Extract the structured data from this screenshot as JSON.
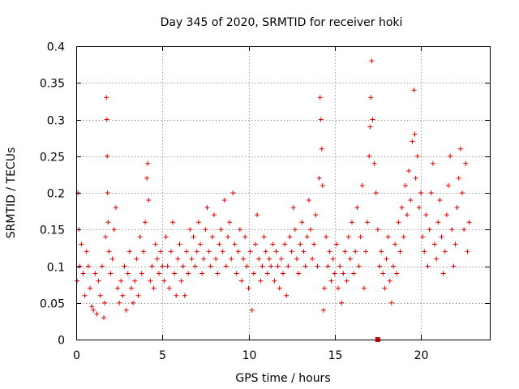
{
  "chart_data": {
    "type": "scatter",
    "title": "Day 345 of 2020, SRMTID for receiver hoki",
    "xlabel": "GPS time / hours",
    "ylabel": "SRMTID / TECUs",
    "xlim": [
      0,
      24
    ],
    "ylim": [
      0,
      0.4
    ],
    "xticks": [
      "0",
      "5",
      "10",
      "15",
      "20"
    ],
    "xtick_values": [
      0,
      5,
      10,
      15,
      20
    ],
    "yticks": [
      "0",
      "0.05",
      "0.1",
      "0.15",
      "0.2",
      "0.25",
      "0.3",
      "0.35",
      "0.4"
    ],
    "ytick_values": [
      0,
      0.05,
      0.1,
      0.15,
      0.2,
      0.25,
      0.3,
      0.35,
      0.4
    ],
    "grid": true,
    "marker": "plus",
    "color": "#e00000",
    "series": [
      {
        "name": "SRMTID",
        "points": [
          [
            0.05,
            0.08
          ],
          [
            0.1,
            0.2
          ],
          [
            0.15,
            0.15
          ],
          [
            0.2,
            0.1
          ],
          [
            0.3,
            0.13
          ],
          [
            0.4,
            0.09
          ],
          [
            0.5,
            0.06
          ],
          [
            0.6,
            0.12
          ],
          [
            0.7,
            0.1
          ],
          [
            0.8,
            0.07
          ],
          [
            0.9,
            0.045
          ],
          [
            1.0,
            0.04
          ],
          [
            1.1,
            0.09
          ],
          [
            1.2,
            0.035
          ],
          [
            1.3,
            0.08
          ],
          [
            1.4,
            0.06
          ],
          [
            1.5,
            0.1
          ],
          [
            1.6,
            0.03
          ],
          [
            1.65,
            0.05
          ],
          [
            1.7,
            0.14
          ],
          [
            1.75,
            0.33
          ],
          [
            1.78,
            0.3
          ],
          [
            1.8,
            0.25
          ],
          [
            1.82,
            0.2
          ],
          [
            1.85,
            0.16
          ],
          [
            1.9,
            0.12
          ],
          [
            2.0,
            0.09
          ],
          [
            2.1,
            0.11
          ],
          [
            2.2,
            0.15
          ],
          [
            2.3,
            0.18
          ],
          [
            2.4,
            0.07
          ],
          [
            2.5,
            0.05
          ],
          [
            2.6,
            0.08
          ],
          [
            2.7,
            0.06
          ],
          [
            2.8,
            0.1
          ],
          [
            2.9,
            0.04
          ],
          [
            3.0,
            0.09
          ],
          [
            3.1,
            0.12
          ],
          [
            3.2,
            0.07
          ],
          [
            3.3,
            0.05
          ],
          [
            3.4,
            0.08
          ],
          [
            3.5,
            0.11
          ],
          [
            3.6,
            0.06
          ],
          [
            3.7,
            0.14
          ],
          [
            3.8,
            0.09
          ],
          [
            3.9,
            0.12
          ],
          [
            4.0,
            0.16
          ],
          [
            4.1,
            0.22
          ],
          [
            4.15,
            0.24
          ],
          [
            4.2,
            0.19
          ],
          [
            4.3,
            0.08
          ],
          [
            4.4,
            0.1
          ],
          [
            4.5,
            0.07
          ],
          [
            4.6,
            0.13
          ],
          [
            4.7,
            0.11
          ],
          [
            4.8,
            0.09
          ],
          [
            4.9,
            0.12
          ],
          [
            5.0,
            0.1
          ],
          [
            5.1,
            0.08
          ],
          [
            5.2,
            0.14
          ],
          [
            5.3,
            0.1
          ],
          [
            5.4,
            0.07
          ],
          [
            5.5,
            0.12
          ],
          [
            5.6,
            0.16
          ],
          [
            5.7,
            0.09
          ],
          [
            5.8,
            0.06
          ],
          [
            5.9,
            0.11
          ],
          [
            6.0,
            0.13
          ],
          [
            6.1,
            0.08
          ],
          [
            6.2,
            0.1
          ],
          [
            6.3,
            0.06
          ],
          [
            6.4,
            0.12
          ],
          [
            6.5,
            0.09
          ],
          [
            6.6,
            0.15
          ],
          [
            6.7,
            0.11
          ],
          [
            6.8,
            0.14
          ],
          [
            6.9,
            0.1
          ],
          [
            7.0,
            0.12
          ],
          [
            7.1,
            0.16
          ],
          [
            7.2,
            0.13
          ],
          [
            7.3,
            0.09
          ],
          [
            7.4,
            0.11
          ],
          [
            7.5,
            0.15
          ],
          [
            7.6,
            0.18
          ],
          [
            7.7,
            0.12
          ],
          [
            7.8,
            0.1
          ],
          [
            7.9,
            0.14
          ],
          [
            8.0,
            0.17
          ],
          [
            8.1,
            0.11
          ],
          [
            8.2,
            0.09
          ],
          [
            8.3,
            0.13
          ],
          [
            8.4,
            0.15
          ],
          [
            8.5,
            0.12
          ],
          [
            8.6,
            0.19
          ],
          [
            8.7,
            0.1
          ],
          [
            8.8,
            0.14
          ],
          [
            8.9,
            0.16
          ],
          [
            9.0,
            0.11
          ],
          [
            9.1,
            0.2
          ],
          [
            9.2,
            0.13
          ],
          [
            9.3,
            0.09
          ],
          [
            9.4,
            0.12
          ],
          [
            9.5,
            0.15
          ],
          [
            9.6,
            0.08
          ],
          [
            9.7,
            0.11
          ],
          [
            9.8,
            0.14
          ],
          [
            9.9,
            0.1
          ],
          [
            10.0,
            0.07
          ],
          [
            10.1,
            0.12
          ],
          [
            10.2,
            0.04
          ],
          [
            10.3,
            0.09
          ],
          [
            10.4,
            0.13
          ],
          [
            10.5,
            0.17
          ],
          [
            10.6,
            0.11
          ],
          [
            10.7,
            0.08
          ],
          [
            10.8,
            0.1
          ],
          [
            10.9,
            0.14
          ],
          [
            11.0,
            0.12
          ],
          [
            11.1,
            0.09
          ],
          [
            11.2,
            0.11
          ],
          [
            11.3,
            0.1
          ],
          [
            11.4,
            0.13
          ],
          [
            11.5,
            0.08
          ],
          [
            11.6,
            0.12
          ],
          [
            11.7,
            0.1
          ],
          [
            11.8,
            0.07
          ],
          [
            11.9,
            0.11
          ],
          [
            12.0,
            0.09
          ],
          [
            12.1,
            0.13
          ],
          [
            12.2,
            0.06
          ],
          [
            12.3,
            0.1
          ],
          [
            12.4,
            0.14
          ],
          [
            12.5,
            0.12
          ],
          [
            12.6,
            0.18
          ],
          [
            12.7,
            0.15
          ],
          [
            12.8,
            0.11
          ],
          [
            12.9,
            0.09
          ],
          [
            13.0,
            0.13
          ],
          [
            13.1,
            0.16
          ],
          [
            13.2,
            0.12
          ],
          [
            13.3,
            0.1
          ],
          [
            13.4,
            0.14
          ],
          [
            13.5,
            0.19
          ],
          [
            13.6,
            0.15
          ],
          [
            13.7,
            0.11
          ],
          [
            13.8,
            0.13
          ],
          [
            13.9,
            0.17
          ],
          [
            14.0,
            0.1
          ],
          [
            14.1,
            0.22
          ],
          [
            14.15,
            0.33
          ],
          [
            14.2,
            0.3
          ],
          [
            14.25,
            0.26
          ],
          [
            14.3,
            0.21
          ],
          [
            14.35,
            0.04
          ],
          [
            14.4,
            0.07
          ],
          [
            14.5,
            0.14
          ],
          [
            14.6,
            0.1
          ],
          [
            14.7,
            0.12
          ],
          [
            14.8,
            0.08
          ],
          [
            14.9,
            0.11
          ],
          [
            15.0,
            0.09
          ],
          [
            15.1,
            0.13
          ],
          [
            15.2,
            0.07
          ],
          [
            15.3,
            0.1
          ],
          [
            15.4,
            0.05
          ],
          [
            15.5,
            0.09
          ],
          [
            15.6,
            0.12
          ],
          [
            15.7,
            0.08
          ],
          [
            15.8,
            0.14
          ],
          [
            15.9,
            0.11
          ],
          [
            16.0,
            0.16
          ],
          [
            16.1,
            0.09
          ],
          [
            16.2,
            0.12
          ],
          [
            16.3,
            0.18
          ],
          [
            16.4,
            0.1
          ],
          [
            16.5,
            0.14
          ],
          [
            16.6,
            0.21
          ],
          [
            16.7,
            0.07
          ],
          [
            16.8,
            0.12
          ],
          [
            16.9,
            0.16
          ],
          [
            17.0,
            0.25
          ],
          [
            17.05,
            0.29
          ],
          [
            17.1,
            0.33
          ],
          [
            17.15,
            0.38
          ],
          [
            17.2,
            0.3
          ],
          [
            17.3,
            0.24
          ],
          [
            17.4,
            0.2
          ],
          [
            17.5,
            0.15
          ],
          [
            17.6,
            0.1
          ],
          [
            17.7,
            0.12
          ],
          [
            17.8,
            0.09
          ],
          [
            17.9,
            0.07
          ],
          [
            18.0,
            0.11
          ],
          [
            18.1,
            0.14
          ],
          [
            18.2,
            0.08
          ],
          [
            18.3,
            0.05
          ],
          [
            18.4,
            0.1
          ],
          [
            18.5,
            0.13
          ],
          [
            18.6,
            0.09
          ],
          [
            18.7,
            0.16
          ],
          [
            18.8,
            0.12
          ],
          [
            18.9,
            0.18
          ],
          [
            19.0,
            0.14
          ],
          [
            19.1,
            0.21
          ],
          [
            19.2,
            0.17
          ],
          [
            19.3,
            0.23
          ],
          [
            19.4,
            0.19
          ],
          [
            19.5,
            0.27
          ],
          [
            19.6,
            0.34
          ],
          [
            19.65,
            0.28
          ],
          [
            19.7,
            0.22
          ],
          [
            19.8,
            0.25
          ],
          [
            19.9,
            0.18
          ],
          [
            20.0,
            0.2
          ],
          [
            20.1,
            0.14
          ],
          [
            20.2,
            0.12
          ],
          [
            20.3,
            0.17
          ],
          [
            20.4,
            0.1
          ],
          [
            20.5,
            0.15
          ],
          [
            20.6,
            0.2
          ],
          [
            20.7,
            0.24
          ],
          [
            20.8,
            0.13
          ],
          [
            20.9,
            0.11
          ],
          [
            21.0,
            0.16
          ],
          [
            21.1,
            0.19
          ],
          [
            21.2,
            0.14
          ],
          [
            21.3,
            0.09
          ],
          [
            21.4,
            0.12
          ],
          [
            21.5,
            0.17
          ],
          [
            21.6,
            0.21
          ],
          [
            21.7,
            0.25
          ],
          [
            21.8,
            0.15
          ],
          [
            21.9,
            0.1
          ],
          [
            22.0,
            0.13
          ],
          [
            22.1,
            0.18
          ],
          [
            22.2,
            0.22
          ],
          [
            22.3,
            0.26
          ],
          [
            22.4,
            0.2
          ],
          [
            22.5,
            0.15
          ],
          [
            22.6,
            0.24
          ],
          [
            22.7,
            0.12
          ],
          [
            22.8,
            0.16
          ]
        ]
      }
    ],
    "annotations": [
      {
        "type": "square-marker",
        "x": 17.5,
        "y": 0.0
      }
    ]
  }
}
